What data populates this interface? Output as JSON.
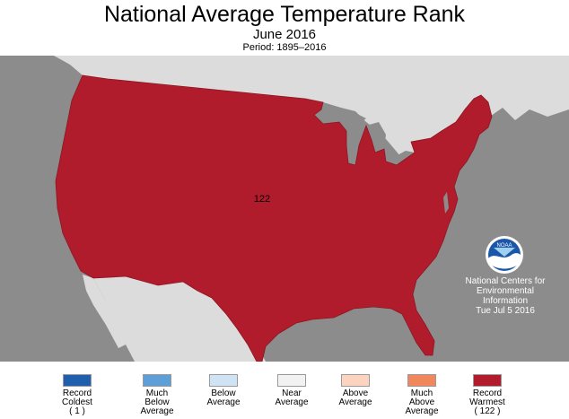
{
  "header": {
    "title": "National Average Temperature Rank",
    "subtitle": "June 2016",
    "period": "Period: 1895–2016"
  },
  "map": {
    "ocean_color": "#8c8c8c",
    "land_color": "#dcdcdc",
    "lake_color": "#8c8c8c",
    "conus_color": "#b01c2b",
    "rank": "122",
    "rank_category": "Record Warmest"
  },
  "logo": {
    "text": "NOAA",
    "icon": "noaa-logo-icon"
  },
  "ncei": {
    "lines": [
      "National Centers for",
      "Environmental",
      "Information",
      "Tue Jul  5 2016"
    ]
  },
  "legend": {
    "items": [
      {
        "lines": [
          "Record",
          "Coldest",
          "( 1 )"
        ],
        "color": "#1f5fae"
      },
      {
        "lines": [
          "Much",
          "Below",
          "Average"
        ],
        "color": "#5d9fd6"
      },
      {
        "lines": [
          "Below",
          "Average"
        ],
        "color": "#cfe3f4"
      },
      {
        "lines": [
          "Near",
          "Average"
        ],
        "color": "#f2f2f2"
      },
      {
        "lines": [
          "Above",
          "Average"
        ],
        "color": "#fbd3bf"
      },
      {
        "lines": [
          "Much",
          "Above",
          "Average"
        ],
        "color": "#f1875d"
      },
      {
        "lines": [
          "Record",
          "Warmest",
          "( 122 )"
        ],
        "color": "#b01c2b"
      }
    ]
  }
}
